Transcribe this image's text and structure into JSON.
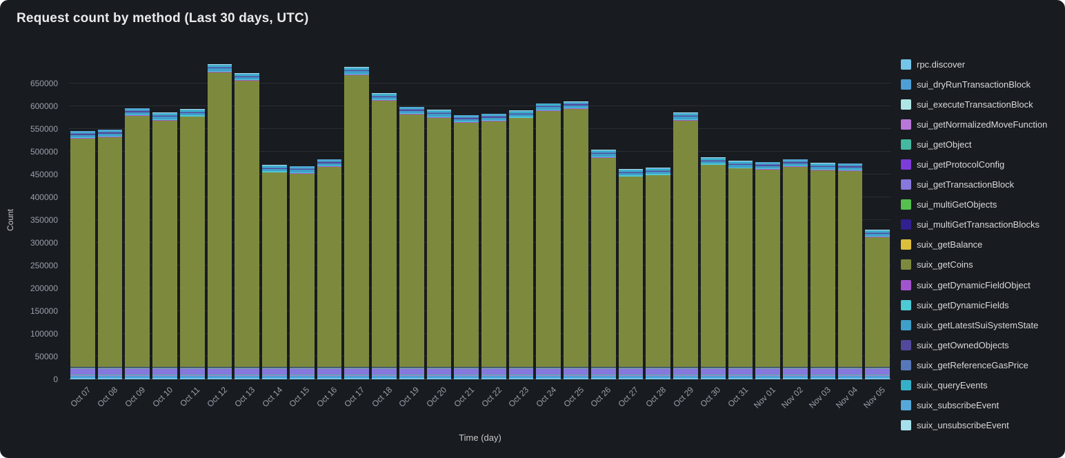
{
  "panel": {
    "title": "Request count by method (Last 30 days, UTC)"
  },
  "chart_data": {
    "type": "bar",
    "stacked": true,
    "title": "Request count by method (Last 30 days, UTC)",
    "xlabel": "Time (day)",
    "ylabel": "Count",
    "ylim": [
      0,
      700000
    ],
    "yticks": [
      0,
      50000,
      100000,
      150000,
      200000,
      250000,
      300000,
      350000,
      400000,
      450000,
      500000,
      550000,
      600000,
      650000
    ],
    "grid": true,
    "legend_position": "right",
    "background_color": "#181b1f",
    "categories": [
      "Oct 07",
      "Oct 08",
      "Oct 09",
      "Oct 10",
      "Oct 11",
      "Oct 12",
      "Oct 13",
      "Oct 14",
      "Oct 15",
      "Oct 16",
      "Oct 17",
      "Oct 18",
      "Oct 19",
      "Oct 20",
      "Oct 21",
      "Oct 22",
      "Oct 23",
      "Oct 24",
      "Oct 25",
      "Oct 26",
      "Oct 27",
      "Oct 28",
      "Oct 29",
      "Oct 30",
      "Oct 31",
      "Nov 01",
      "Nov 02",
      "Nov 03",
      "Nov 04",
      "Nov 05"
    ],
    "series": [
      {
        "name": "rpc.discover",
        "color": "#75c5e8",
        "values": 3000
      },
      {
        "name": "sui_dryRunTransactionBlock",
        "color": "#4e9fd6",
        "values": 4000
      },
      {
        "name": "sui_executeTransactionBlock",
        "color": "#aee6e6",
        "values": 1000
      },
      {
        "name": "sui_getNormalizedMoveFunction",
        "color": "#b877d9",
        "values": 500
      },
      {
        "name": "sui_getObject",
        "color": "#45b8a1",
        "values": 2000
      },
      {
        "name": "sui_getProtocolConfig",
        "color": "#7d3cd9",
        "values": 500
      },
      {
        "name": "sui_getTransactionBlock",
        "color": "#8678dd",
        "values": 14000
      },
      {
        "name": "sui_multiGetObjects",
        "color": "#56bf50",
        "values": 1500
      },
      {
        "name": "sui_multiGetTransactionBlocks",
        "color": "#31208f",
        "values": 500
      },
      {
        "name": "suix_getBalance",
        "color": "#ddbf3e",
        "values": 1000
      },
      {
        "name": "suix_getCoins",
        "color": "#7d8a3e",
        "values": [
          501000,
          504000,
          551000,
          541000,
          549000,
          647000,
          628000,
          426000,
          424000,
          439000,
          641000,
          584000,
          554000,
          547000,
          536000,
          539000,
          546000,
          562000,
          566000,
          459000,
          417000,
          420000,
          541000,
          443000,
          435000,
          433000,
          439000,
          431000,
          430000,
          284000
        ]
      },
      {
        "name": "suix_getDynamicFieldObject",
        "color": "#a254cf",
        "values": 1000
      },
      {
        "name": "suix_getDynamicFields",
        "color": "#4ec9d6",
        "values": 2000
      },
      {
        "name": "suix_getLatestSuiSystemState",
        "color": "#3f9fc9",
        "values": 5000
      },
      {
        "name": "suix_getOwnedObjects",
        "color": "#514a9c",
        "values": 2000
      },
      {
        "name": "suix_getReferenceGasPrice",
        "color": "#5778b8",
        "values": 1500
      },
      {
        "name": "suix_queryEvents",
        "color": "#36b0c9",
        "values": 2500
      },
      {
        "name": "suix_subscribeEvent",
        "color": "#55a8d8",
        "values": 2000
      },
      {
        "name": "suix_unsubscribeEvent",
        "color": "#a5e0ec",
        "values": 1000
      }
    ]
  }
}
